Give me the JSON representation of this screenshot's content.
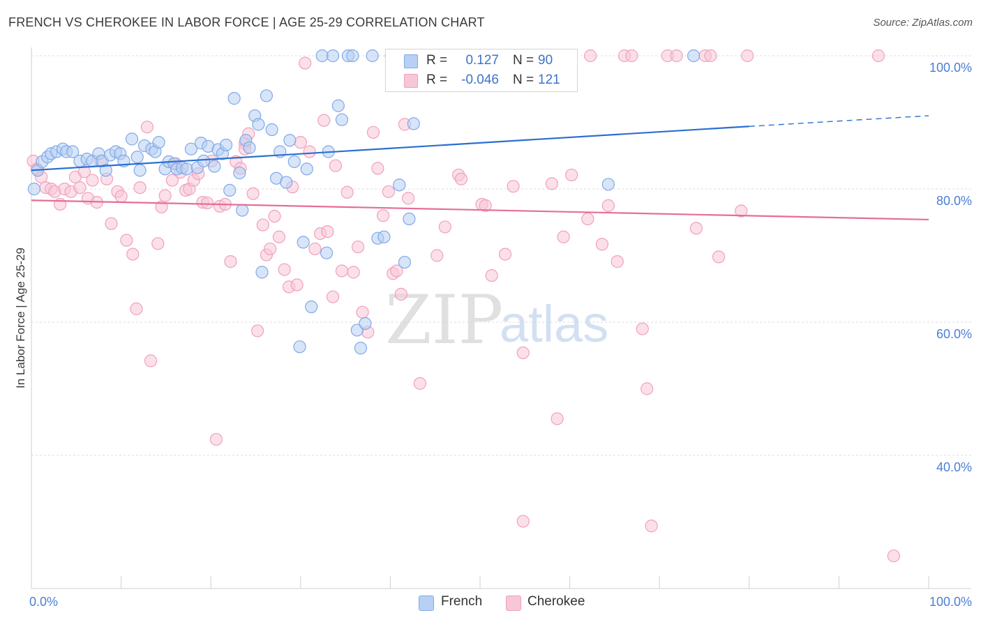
{
  "header": {
    "title": "FRENCH VS CHEROKEE IN LABOR FORCE | AGE 25-29 CORRELATION CHART",
    "source": "Source: ZipAtlas.com"
  },
  "watermark": {
    "zip": "ZIP",
    "atlas": "atlas"
  },
  "legend_top": {
    "rows": [
      {
        "r_label": "R =",
        "r_value": "0.127",
        "n_label": "N =",
        "n_value": "90"
      },
      {
        "r_label": "R =",
        "r_value": "-0.046",
        "n_label": "N =",
        "n_value": "121"
      }
    ]
  },
  "legend_bottom": {
    "items": [
      {
        "label": "French"
      },
      {
        "label": "Cherokee"
      }
    ]
  },
  "chart_data": {
    "type": "scatter",
    "title": "FRENCH VS CHEROKEE IN LABOR FORCE | AGE 25-29 CORRELATION CHART",
    "xlabel": "",
    "ylabel": "In Labor Force | Age 25-29",
    "xlim": [
      0,
      100
    ],
    "ylim": [
      20,
      101
    ],
    "x_tick_labels": {
      "left": "0.0%",
      "right": "100.0%"
    },
    "y_ticks": [
      {
        "value": 100,
        "label": "100.0%"
      },
      {
        "value": 80,
        "label": "80.0%"
      },
      {
        "value": 60,
        "label": "60.0%"
      },
      {
        "value": 40,
        "label": "40.0%"
      }
    ],
    "grid": "horizontal dashed",
    "legend_position": "top-center and bottom",
    "series": [
      {
        "name": "French",
        "color": "#7fa9e8",
        "line_color": "#2a6fd0",
        "trend": {
          "x0": 0,
          "y0": 82.8,
          "x1": 80,
          "y1": 89.4,
          "dash_to_x": 100,
          "dash_to_y": 91.0
        },
        "points": [
          [
            0.3,
            80.0
          ],
          [
            0.7,
            82.8
          ],
          [
            1.2,
            84.1
          ],
          [
            1.8,
            84.8
          ],
          [
            2.2,
            85.3
          ],
          [
            2.8,
            85.6
          ],
          [
            3.5,
            86.0
          ],
          [
            3.9,
            85.6
          ],
          [
            4.6,
            85.6
          ],
          [
            5.4,
            84.2
          ],
          [
            6.2,
            84.5
          ],
          [
            6.8,
            84.2
          ],
          [
            7.5,
            85.3
          ],
          [
            7.9,
            84.2
          ],
          [
            8.3,
            82.8
          ],
          [
            8.8,
            85.1
          ],
          [
            9.4,
            85.6
          ],
          [
            9.9,
            85.3
          ],
          [
            10.3,
            84.2
          ],
          [
            11.2,
            87.5
          ],
          [
            11.8,
            84.8
          ],
          [
            12.1,
            82.8
          ],
          [
            12.6,
            86.5
          ],
          [
            13.4,
            86.0
          ],
          [
            13.8,
            85.6
          ],
          [
            14.2,
            87.0
          ],
          [
            14.9,
            83.0
          ],
          [
            15.3,
            84.1
          ],
          [
            15.9,
            83.8
          ],
          [
            16.2,
            83.0
          ],
          [
            16.8,
            83.2
          ],
          [
            17.3,
            83.0
          ],
          [
            17.8,
            86.0
          ],
          [
            18.5,
            83.2
          ],
          [
            18.9,
            86.9
          ],
          [
            19.2,
            84.2
          ],
          [
            19.7,
            86.4
          ],
          [
            20.4,
            83.4
          ],
          [
            20.8,
            85.9
          ],
          [
            21.3,
            85.3
          ],
          [
            21.7,
            86.6
          ],
          [
            22.1,
            79.8
          ],
          [
            22.6,
            93.6
          ],
          [
            23.2,
            82.4
          ],
          [
            23.5,
            76.8
          ],
          [
            23.9,
            87.3
          ],
          [
            24.3,
            86.2
          ],
          [
            24.9,
            91.0
          ],
          [
            25.3,
            89.7
          ],
          [
            25.7,
            67.5
          ],
          [
            26.2,
            94.0
          ],
          [
            26.8,
            88.9
          ],
          [
            27.3,
            81.6
          ],
          [
            27.7,
            85.6
          ],
          [
            28.4,
            81.0
          ],
          [
            28.8,
            87.3
          ],
          [
            29.3,
            84.1
          ],
          [
            29.9,
            56.3
          ],
          [
            30.3,
            72.0
          ],
          [
            30.7,
            83.0
          ],
          [
            31.2,
            62.3
          ],
          [
            32.4,
            100.0
          ],
          [
            32.9,
            70.4
          ],
          [
            33.1,
            85.6
          ],
          [
            33.6,
            100.0
          ],
          [
            34.2,
            92.5
          ],
          [
            34.6,
            90.4
          ],
          [
            35.3,
            100.0
          ],
          [
            35.8,
            100.0
          ],
          [
            36.3,
            58.8
          ],
          [
            36.7,
            56.1
          ],
          [
            37.2,
            59.8
          ],
          [
            38.0,
            100.0
          ],
          [
            38.6,
            72.6
          ],
          [
            39.3,
            72.8
          ],
          [
            40.1,
            100.0
          ],
          [
            41.0,
            80.6
          ],
          [
            42.1,
            75.5
          ],
          [
            41.6,
            69.0
          ],
          [
            42.6,
            89.8
          ],
          [
            43.9,
            96.3
          ],
          [
            44.7,
            100.0
          ],
          [
            45.5,
            100.0
          ],
          [
            46.3,
            100.0
          ],
          [
            47.4,
            100.0
          ],
          [
            51.3,
            100.0
          ],
          [
            52.2,
            100.0
          ],
          [
            56.8,
            100.0
          ],
          [
            64.3,
            80.7
          ],
          [
            73.8,
            100.0
          ]
        ]
      },
      {
        "name": "Cherokee",
        "color": "#f0a0bc",
        "line_color": "#e46e98",
        "trend": {
          "x0": 0,
          "y0": 78.3,
          "x1": 100,
          "y1": 75.4
        },
        "points": [
          [
            0.2,
            84.2
          ],
          [
            0.6,
            83.0
          ],
          [
            1.1,
            81.8
          ],
          [
            1.6,
            80.2
          ],
          [
            2.2,
            80.0
          ],
          [
            2.6,
            79.6
          ],
          [
            3.2,
            77.7
          ],
          [
            3.7,
            80.0
          ],
          [
            4.4,
            79.6
          ],
          [
            4.9,
            81.8
          ],
          [
            5.4,
            80.2
          ],
          [
            5.9,
            82.6
          ],
          [
            6.3,
            78.6
          ],
          [
            6.8,
            81.3
          ],
          [
            7.3,
            78.0
          ],
          [
            7.7,
            84.2
          ],
          [
            8.4,
            81.5
          ],
          [
            8.9,
            74.8
          ],
          [
            9.6,
            79.6
          ],
          [
            10.0,
            78.9
          ],
          [
            10.6,
            72.3
          ],
          [
            11.3,
            70.2
          ],
          [
            11.7,
            62.0
          ],
          [
            12.1,
            80.2
          ],
          [
            12.9,
            89.3
          ],
          [
            13.3,
            54.2
          ],
          [
            14.1,
            71.8
          ],
          [
            14.5,
            77.3
          ],
          [
            14.9,
            79.0
          ],
          [
            15.7,
            81.3
          ],
          [
            16.1,
            83.8
          ],
          [
            16.6,
            82.5
          ],
          [
            17.2,
            79.8
          ],
          [
            17.6,
            80.0
          ],
          [
            18.1,
            81.3
          ],
          [
            18.6,
            82.3
          ],
          [
            19.1,
            78.0
          ],
          [
            19.6,
            77.9
          ],
          [
            20.1,
            84.2
          ],
          [
            20.6,
            42.4
          ],
          [
            21.0,
            77.4
          ],
          [
            21.6,
            77.7
          ],
          [
            22.2,
            69.1
          ],
          [
            22.8,
            84.1
          ],
          [
            23.3,
            83.1
          ],
          [
            23.8,
            86.8
          ],
          [
            24.2,
            88.3
          ],
          [
            24.7,
            79.3
          ],
          [
            25.2,
            58.7
          ],
          [
            25.8,
            74.6
          ],
          [
            26.2,
            70.1
          ],
          [
            26.6,
            71.0
          ],
          [
            27.1,
            75.9
          ],
          [
            27.6,
            72.8
          ],
          [
            28.2,
            67.9
          ],
          [
            28.7,
            65.3
          ],
          [
            29.1,
            80.3
          ],
          [
            29.6,
            65.6
          ],
          [
            30.0,
            87.0
          ],
          [
            30.5,
            98.9
          ],
          [
            31.0,
            85.6
          ],
          [
            31.6,
            71.0
          ],
          [
            32.2,
            73.3
          ],
          [
            32.6,
            90.3
          ],
          [
            33.0,
            73.6
          ],
          [
            33.6,
            63.8
          ],
          [
            33.9,
            83.5
          ],
          [
            34.6,
            67.7
          ],
          [
            35.2,
            79.5
          ],
          [
            35.9,
            67.5
          ],
          [
            36.4,
            71.3
          ],
          [
            36.9,
            61.5
          ],
          [
            37.5,
            58.5
          ],
          [
            38.1,
            88.5
          ],
          [
            38.6,
            83.1
          ],
          [
            39.2,
            76.0
          ],
          [
            39.8,
            79.6
          ],
          [
            40.3,
            67.3
          ],
          [
            40.7,
            67.7
          ],
          [
            41.2,
            64.2
          ],
          [
            41.6,
            89.7
          ],
          [
            42.0,
            78.6
          ],
          [
            43.3,
            50.8
          ],
          [
            45.2,
            70.0
          ],
          [
            46.1,
            74.3
          ],
          [
            47.6,
            82.1
          ],
          [
            47.9,
            81.5
          ],
          [
            50.2,
            77.7
          ],
          [
            50.6,
            77.5
          ],
          [
            51.3,
            67.0
          ],
          [
            53.7,
            80.4
          ],
          [
            54.8,
            55.4
          ],
          [
            56.0,
            100.0
          ],
          [
            58.0,
            80.8
          ],
          [
            58.6,
            45.5
          ],
          [
            59.3,
            72.8
          ],
          [
            60.2,
            82.1
          ],
          [
            62.0,
            75.5
          ],
          [
            62.3,
            100.0
          ],
          [
            63.6,
            71.7
          ],
          [
            65.3,
            69.1
          ],
          [
            66.1,
            100.0
          ],
          [
            66.9,
            100.0
          ],
          [
            68.1,
            59.0
          ],
          [
            68.6,
            50.0
          ],
          [
            69.1,
            29.4
          ],
          [
            70.9,
            100.0
          ],
          [
            71.9,
            100.0
          ],
          [
            74.1,
            74.1
          ],
          [
            75.1,
            100.0
          ],
          [
            75.7,
            100.0
          ],
          [
            76.6,
            69.8
          ],
          [
            79.1,
            76.7
          ],
          [
            79.8,
            100.0
          ],
          [
            96.1,
            24.9
          ],
          [
            94.4,
            100.0
          ],
          [
            64.3,
            77.5
          ],
          [
            52.8,
            70.2
          ],
          [
            43.1,
            96.0
          ],
          [
            54.8,
            30.1
          ],
          [
            23.8,
            86.0
          ]
        ]
      }
    ]
  }
}
